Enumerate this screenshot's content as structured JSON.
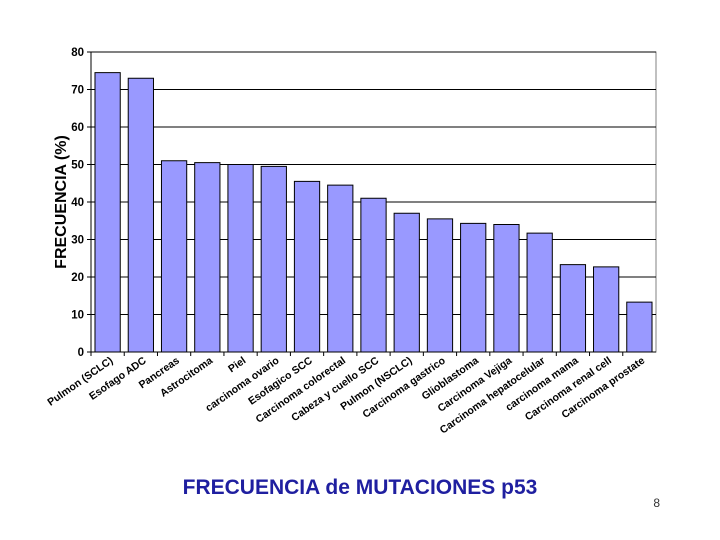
{
  "chart_data": {
    "type": "bar",
    "title": "FRECUENCIA de MUTACIONES p53",
    "xlabel": "",
    "ylabel": "FRECUENCIA (%)",
    "ylim": [
      0,
      80
    ],
    "yticks": [
      0,
      10,
      20,
      30,
      40,
      50,
      60,
      70,
      80
    ],
    "grid": true,
    "legend": "none",
    "categories": [
      "Pulmon (SCLC)",
      "Esofago ADC",
      "Pancreas",
      "Astrocitoma",
      "Piel",
      "carcinoma ovario",
      "Esofagico SCC",
      "Carcinoma colorectal",
      "Cabeza y cuello SCC",
      "Pulmon (NSCLC)",
      "Carcinoma gastrico",
      "Glioblastoma",
      "Carcinoma Vejiga",
      "Carcinoma hepatocelular",
      "carcinoma mama",
      "Carcinoma renal cell",
      "Carcinoma prostate"
    ],
    "values": [
      74.5,
      73,
      51,
      50.5,
      50,
      49.5,
      45.5,
      44.5,
      41,
      37,
      35.5,
      34.3,
      34,
      31.7,
      23.3,
      22.7,
      13.3
    ],
    "bar_color": "#9999ff"
  },
  "page_number": "8"
}
